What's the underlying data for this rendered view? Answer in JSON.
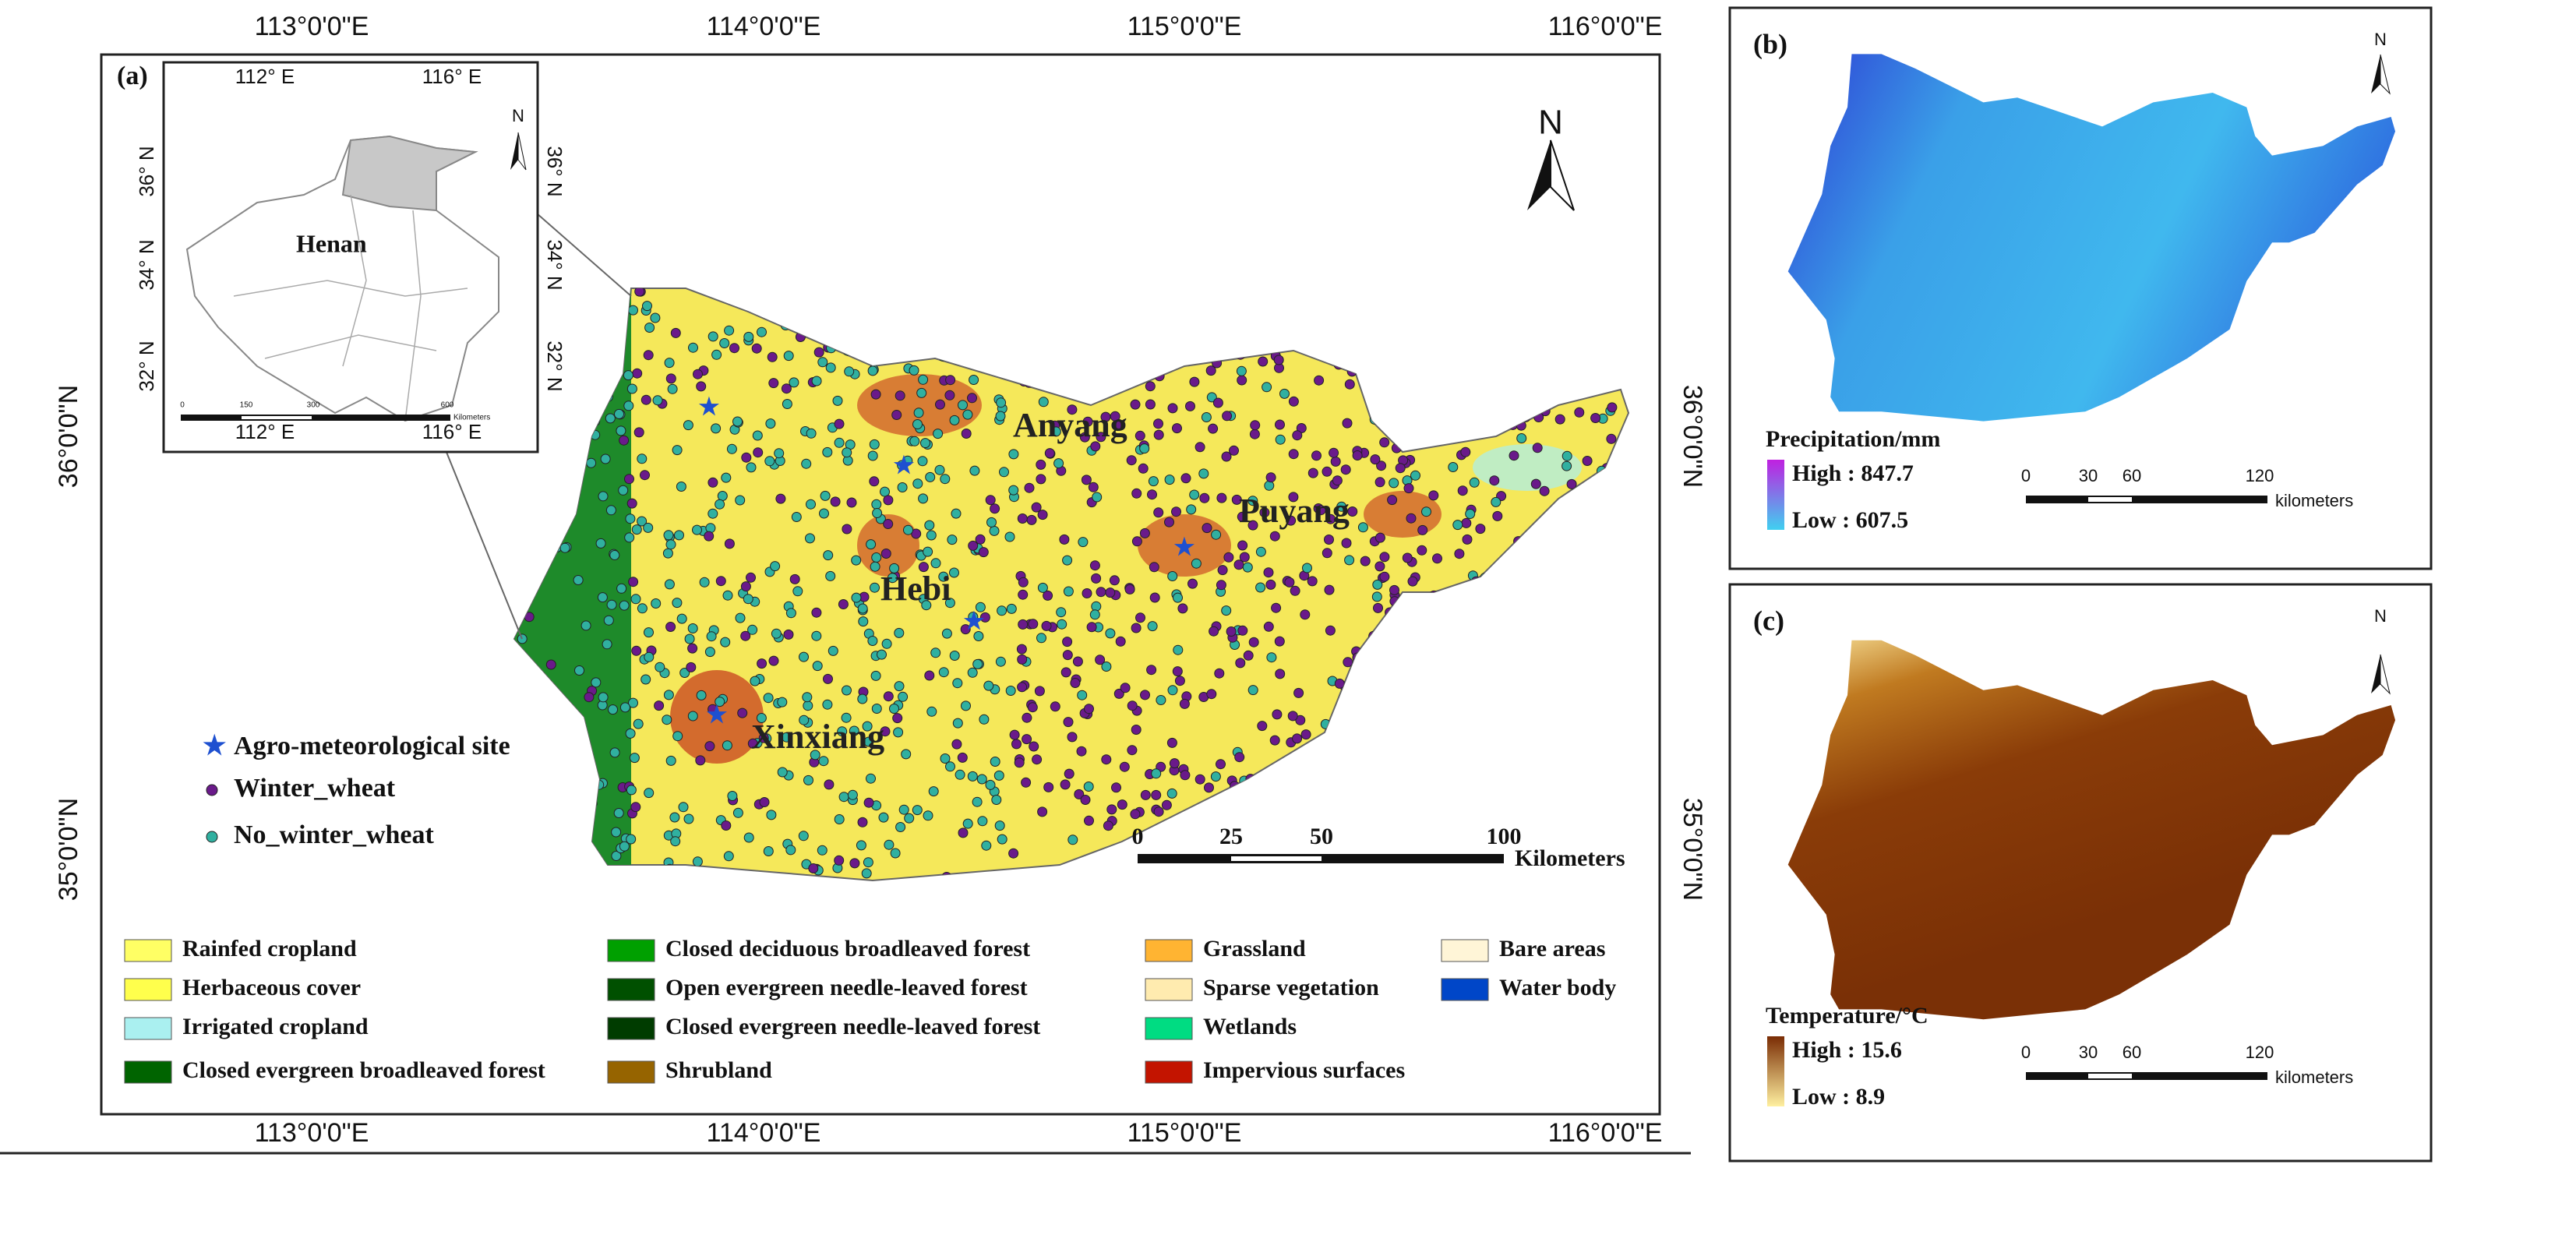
{
  "panel_a": {
    "label": "(a)",
    "north": "N",
    "top_labels": [
      "113°0'0\"E",
      "114°0'0\"E",
      "115°0'0\"E",
      "116°0'0\"E"
    ],
    "bottom_labels": [
      "113°0'0\"E",
      "114°0'0\"E",
      "115°0'0\"E",
      "116°0'0\"E"
    ],
    "left_labels": [
      "36°0'0\"N",
      "35°0'0\"N"
    ],
    "right_labels": [
      "36°0'0\"N",
      "35°0'0\"N"
    ],
    "inset": {
      "top_labels": [
        "112° E",
        "116° E"
      ],
      "bottom_labels": [
        "112° E",
        "116° E"
      ],
      "left_labels": [
        "36° N",
        "34° N",
        "32° N"
      ],
      "right_labels": [
        "36° N",
        "34° N",
        "32° N"
      ],
      "region": "Henan",
      "north": "N",
      "scale_labels": [
        "0",
        "150",
        "300",
        "600"
      ],
      "scale_unit": "Kilometers"
    },
    "cities": [
      "Anyang",
      "Puyang",
      "Hebi",
      "Xinxiang"
    ],
    "point_legend": [
      "Agro-meteorological site",
      "Winter_wheat",
      "No_winter_wheat"
    ],
    "scale_labels": [
      "0",
      "25",
      "50",
      "100"
    ],
    "scale_unit": "Kilometers",
    "landcover_legend": [
      {
        "label": "Rainfed cropland",
        "color": "#ffff64"
      },
      {
        "label": "Herbaceous cover",
        "color": "#ffff4c"
      },
      {
        "label": "Irrigated cropland",
        "color": "#aaf0f0"
      },
      {
        "label": "Closed evergreen broadleaved forest",
        "color": "#006400"
      },
      {
        "label": "Closed deciduous broadleaved forest",
        "color": "#00a000"
      },
      {
        "label": "Open evergreen needle-leaved forest",
        "color": "#005000"
      },
      {
        "label": "Closed evergreen needle-leaved forest",
        "color": "#003c00"
      },
      {
        "label": "Shrubland",
        "color": "#966400"
      },
      {
        "label": "Grassland",
        "color": "#ffb432"
      },
      {
        "label": "Sparse vegetation",
        "color": "#ffebaf"
      },
      {
        "label": "Wetlands",
        "color": "#00dc82"
      },
      {
        "label": "Impervious surfaces",
        "color": "#c31400"
      },
      {
        "label": "Bare areas",
        "color": "#fff5d7"
      },
      {
        "label": "Water body",
        "color": "#0046c8"
      }
    ]
  },
  "panel_b": {
    "label": "(b)",
    "north": "N",
    "title": "Precipitation/mm",
    "high": "High : 847.7",
    "low": "Low : 607.5",
    "scale_labels": [
      "0",
      "30",
      "60",
      "120"
    ],
    "scale_unit": "kilometers"
  },
  "panel_c": {
    "label": "(c)",
    "north": "N",
    "title": "Temperature/°C",
    "high": "High : 15.6",
    "low": "Low : 8.9",
    "scale_labels": [
      "0",
      "30",
      "60",
      "120"
    ],
    "scale_unit": "kilometers"
  }
}
